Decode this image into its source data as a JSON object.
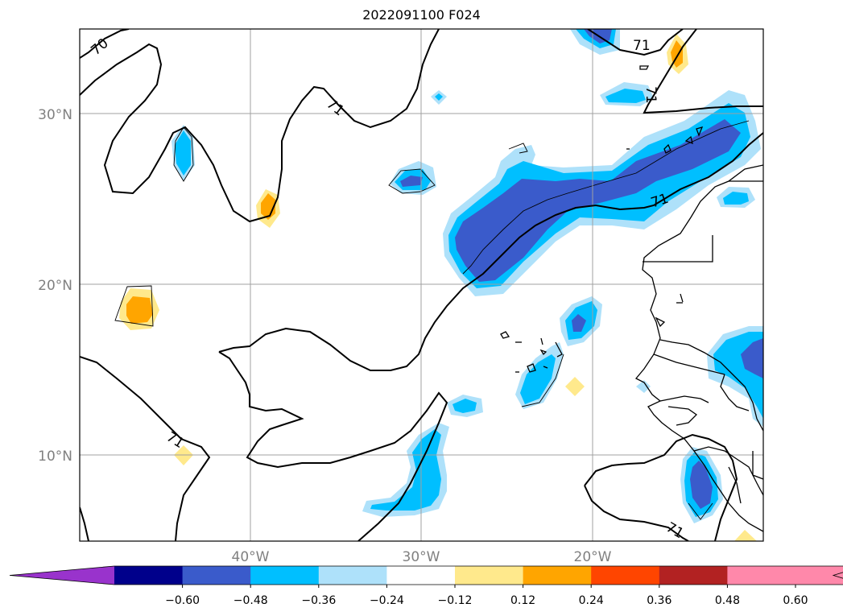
{
  "title": "2022091100 F024",
  "map": {
    "lat_labels": [
      "30°N",
      "20°N",
      "10°N"
    ],
    "lon_labels": [
      "40°W",
      "30°W",
      "20°W"
    ],
    "contour_labels": [
      "70",
      "71",
      "71",
      "71",
      "71",
      "71",
      "71"
    ],
    "colors": {
      "coast": "#000000",
      "grid": "#a0a0a0",
      "tick_label": "#808080"
    }
  },
  "colorbar": {
    "ticks": [
      "−0.60",
      "−0.48",
      "−0.36",
      "−0.24",
      "−0.12",
      "0.12",
      "0.24",
      "0.36",
      "0.48",
      "0.60"
    ],
    "colors": [
      "#9933cc",
      "#00008b",
      "#3a5bcb",
      "#00bfff",
      "#aee1fa",
      "#ffffff",
      "#ffe98c",
      "#ffa500",
      "#ff4500",
      "#b22222",
      "#ff88aa",
      "#ff88aa"
    ]
  }
}
